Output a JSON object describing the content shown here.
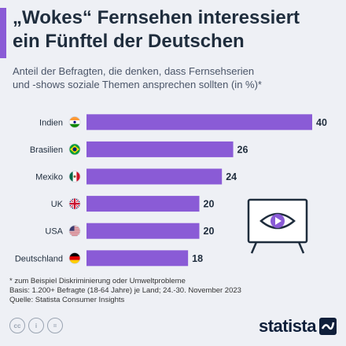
{
  "header": {
    "title_line1": "„Wokes“ Fernsehen interessiert",
    "title_line2": "ein Fünftel der Deutschen",
    "subtitle_line1": "Anteil der Befragten, die denken, dass Fernsehserien",
    "subtitle_line2": "und -shows soziale Themen ansprechen sollten (in %)*"
  },
  "chart_data": {
    "type": "bar",
    "orientation": "horizontal",
    "categories": [
      "Indien",
      "Brasilien",
      "Mexiko",
      "UK",
      "USA",
      "Deutschland"
    ],
    "values": [
      40,
      26,
      24,
      20,
      20,
      18
    ],
    "flags": [
      "flag-india-icon",
      "flag-brazil-icon",
      "flag-mexico-icon",
      "flag-uk-icon",
      "flag-usa-icon",
      "flag-germany-icon"
    ],
    "xlim": [
      0,
      40
    ],
    "bar_color": "#8a5bd6",
    "grid": false
  },
  "footer": {
    "note1": "* zum Beispiel Diskriminierung oder Umweltprobleme",
    "note2": "Basis: 1.200+ Befragte (18-64 Jahre) je Land; 24.-30. November 2023",
    "source": "Quelle: Statista Consumer Insights",
    "logo": "statista"
  },
  "colors": {
    "background": "#eef0f5",
    "accent": "#8a5bd6",
    "text": "#1f2d3d"
  }
}
